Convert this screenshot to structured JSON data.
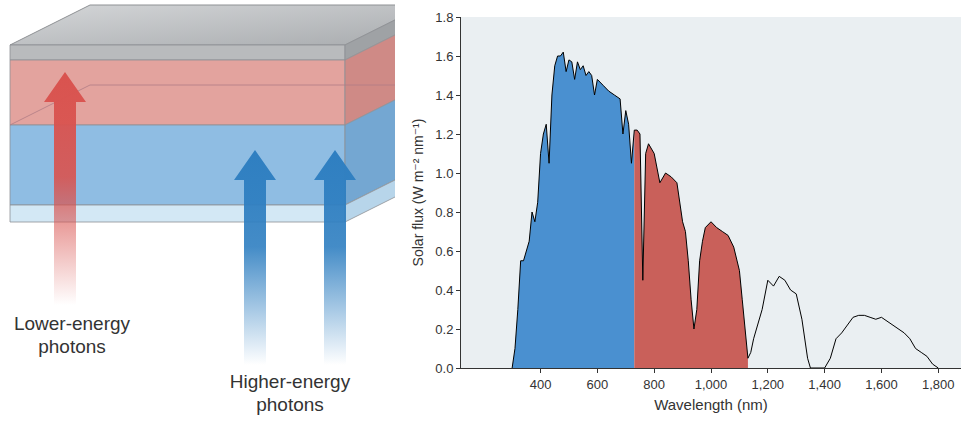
{
  "chart_data": {
    "type": "line",
    "x_label": "Wavelength (nm)",
    "y_label": "Solar flux (W m⁻² nm⁻¹)",
    "x": [
      300,
      310,
      320,
      330,
      340,
      350,
      360,
      370,
      380,
      390,
      400,
      410,
      420,
      430,
      440,
      450,
      460,
      470,
      480,
      490,
      500,
      510,
      520,
      530,
      540,
      550,
      560,
      570,
      580,
      590,
      600,
      620,
      640,
      660,
      680,
      690,
      700,
      710,
      720,
      730,
      740,
      750,
      760,
      770,
      780,
      800,
      820,
      840,
      860,
      880,
      900,
      910,
      920,
      930,
      940,
      950,
      960,
      970,
      980,
      1000,
      1020,
      1040,
      1060,
      1080,
      1100,
      1110,
      1120,
      1130,
      1140,
      1150,
      1160,
      1180,
      1200,
      1220,
      1240,
      1260,
      1280,
      1300,
      1320,
      1340,
      1350,
      1360,
      1380,
      1400,
      1420,
      1440,
      1460,
      1480,
      1500,
      1520,
      1540,
      1560,
      1580,
      1600,
      1620,
      1640,
      1660,
      1680,
      1700,
      1720,
      1740,
      1760,
      1780,
      1800
    ],
    "series": [
      {
        "color": "#000000",
        "values": [
          0,
          0.1,
          0.3,
          0.55,
          0.55,
          0.6,
          0.65,
          0.8,
          0.75,
          0.85,
          1.1,
          1.2,
          1.25,
          1.05,
          1.4,
          1.55,
          1.6,
          1.6,
          1.62,
          1.52,
          1.58,
          1.57,
          1.48,
          1.57,
          1.53,
          1.55,
          1.5,
          1.52,
          1.5,
          1.4,
          1.48,
          1.45,
          1.42,
          1.4,
          1.38,
          1.2,
          1.32,
          1.25,
          1.05,
          1.22,
          1.22,
          1.2,
          0.45,
          1.1,
          1.15,
          1.1,
          0.95,
          1.0,
          0.98,
          0.95,
          0.75,
          0.7,
          0.55,
          0.35,
          0.2,
          0.3,
          0.55,
          0.65,
          0.72,
          0.75,
          0.72,
          0.7,
          0.68,
          0.62,
          0.5,
          0.35,
          0.2,
          0.05,
          0.08,
          0.15,
          0.2,
          0.3,
          0.45,
          0.42,
          0.47,
          0.45,
          0.4,
          0.38,
          0.25,
          0.05,
          0,
          0,
          0,
          0,
          0.05,
          0.15,
          0.18,
          0.22,
          0.26,
          0.27,
          0.27,
          0.26,
          0.25,
          0.26,
          0.24,
          0.22,
          0.2,
          0.18,
          0.15,
          0.1,
          0.08,
          0.06,
          0.02,
          0
        ],
        "fills": [
          {
            "from": 300,
            "to": 730,
            "color": "#4a90d0"
          },
          {
            "from": 730,
            "to": 1130,
            "color": "#c9605a"
          }
        ]
      }
    ],
    "xlim": [
      120,
      1880
    ],
    "xticks": [
      400,
      600,
      800,
      {
        "value": 1000,
        "label": "1,000"
      },
      {
        "value": 1200,
        "label": "1,200"
      },
      {
        "value": 1400,
        "label": "1,400"
      },
      {
        "value": 1600,
        "label": "1,600"
      },
      {
        "value": 1800,
        "label": "1,800"
      }
    ],
    "ylim": [
      0,
      1.8
    ],
    "yticks": [
      {
        "value": 0,
        "label": "0.0"
      },
      0.2,
      0.4,
      0.6,
      0.8,
      {
        "value": 1,
        "label": "1.0"
      },
      1.2,
      1.4,
      1.6,
      1.8
    ],
    "grid": false
  },
  "diagram": {
    "arrows": [
      {
        "label": [
          "Lower-energy",
          "photons"
        ],
        "color": "#d9534f"
      },
      {
        "label": [
          "Higher-energy",
          "photons"
        ],
        "color": "#2f7fc1"
      }
    ]
  }
}
